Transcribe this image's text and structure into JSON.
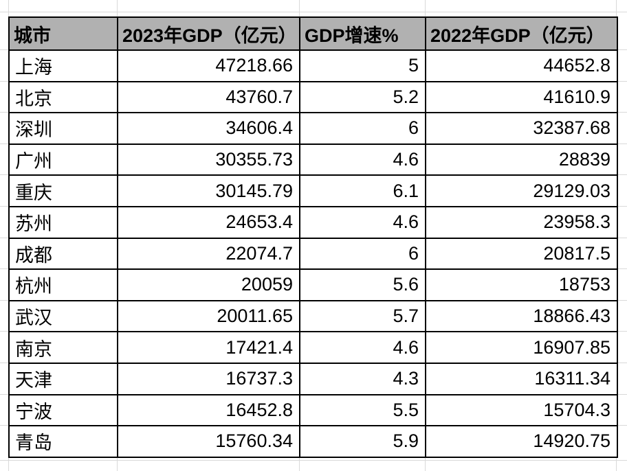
{
  "sheet": {
    "colors": {
      "header_bg": "#b1b1b1",
      "table_border": "#000000",
      "gridline": "#d9d9d9",
      "cell_bg": "#ffffff",
      "text": "#000000"
    }
  },
  "table": {
    "header": [
      "城市",
      "2023年GDP（亿元）",
      "GDP增速%",
      "2022年GDP（亿元）"
    ],
    "rows": [
      [
        "上海",
        "47218.66",
        "5",
        "44652.8"
      ],
      [
        "北京",
        "43760.7",
        "5.2",
        "41610.9"
      ],
      [
        "深圳",
        "34606.4",
        "6",
        "32387.68"
      ],
      [
        "广州",
        "30355.73",
        "4.6",
        "28839"
      ],
      [
        "重庆",
        "30145.79",
        "6.1",
        "29129.03"
      ],
      [
        "苏州",
        "24653.4",
        "4.6",
        "23958.3"
      ],
      [
        "成都",
        "22074.7",
        "6",
        "20817.5"
      ],
      [
        "杭州",
        "20059",
        "5.6",
        "18753"
      ],
      [
        "武汉",
        "20011.65",
        "5.7",
        "18866.43"
      ],
      [
        "南京",
        "17421.4",
        "4.6",
        "16907.85"
      ],
      [
        "天津",
        "16737.3",
        "4.3",
        "16311.34"
      ],
      [
        "宁波",
        "16452.8",
        "5.5",
        "15704.3"
      ],
      [
        "青岛",
        "15760.34",
        "5.9",
        "14920.75"
      ]
    ]
  }
}
